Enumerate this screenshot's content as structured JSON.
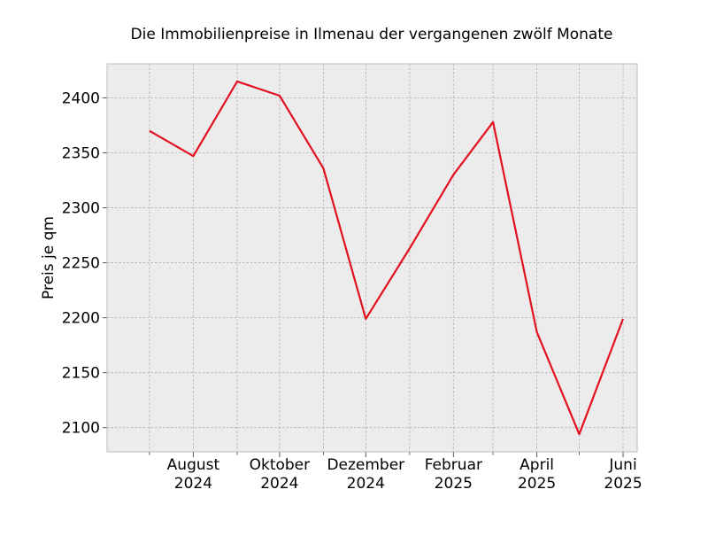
{
  "chart_data": {
    "type": "line",
    "title": "Die Immobilienpreise in Ilmenau der vergangenen zwölf Monate",
    "xlabel": "",
    "ylabel": "Preis je qm",
    "x": [
      "2024-07",
      "2024-08",
      "2024-09",
      "2024-10",
      "2024-11",
      "2024-12",
      "2025-01",
      "2025-02",
      "2025-03",
      "2025-04",
      "2025-05",
      "2025-06"
    ],
    "x_tick_labels": [
      {
        "month": "2024-08",
        "line1": "August",
        "line2": "2024"
      },
      {
        "month": "2024-10",
        "line1": "Oktober",
        "line2": "2024"
      },
      {
        "month": "2024-12",
        "line1": "Dezember",
        "line2": "2024"
      },
      {
        "month": "2025-02",
        "line1": "Februar",
        "line2": "2025"
      },
      {
        "month": "2025-04",
        "line1": "April",
        "line2": "2025"
      },
      {
        "month": "2025-06",
        "line1": "Juni",
        "line2": "2025"
      }
    ],
    "series": [
      {
        "values": [
          2370,
          2347,
          2415,
          2402,
          2336,
          2199,
          2263,
          2330,
          2378,
          2187,
          2094,
          2199
        ]
      }
    ],
    "yticks": [
      2100,
      2150,
      2200,
      2250,
      2300,
      2350,
      2400
    ],
    "ylim": [
      2078,
      2431
    ],
    "xlim": [
      "2024-06-15",
      "2025-06-25"
    ],
    "grid": true,
    "legend": "none",
    "colors": {
      "line": "#e3101e",
      "plot_bg": "#ececec",
      "grid": "#b0b0b0",
      "frame": "#bdbdbd"
    }
  }
}
